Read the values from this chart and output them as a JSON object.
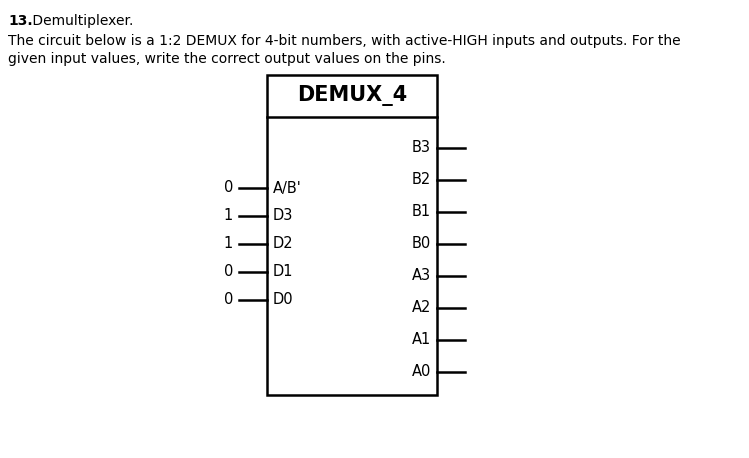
{
  "title_number": "13.",
  "title_text": " Demultiplexer.",
  "description_line1": "The circuit below is a 1:2 DEMUX for 4-bit numbers, with active-HIGH inputs and outputs. For the",
  "description_line2": "given input values, write the correct output values on the pins.",
  "chip_label": "DEMUX_4",
  "bg_color": "#ffffff",
  "text_color": "#000000",
  "box_color": "#000000",
  "chip_label_fontsize": 15,
  "pin_fontsize": 10.5,
  "desc_fontsize": 10,
  "title_fontsize": 10,
  "line_width": 1.5,
  "input_pins": [
    {
      "label": "A/B'",
      "value": "0"
    },
    {
      "label": "D3",
      "value": "1"
    },
    {
      "label": "D2",
      "value": "1"
    },
    {
      "label": "D1",
      "value": "0"
    },
    {
      "label": "D0",
      "value": "0"
    }
  ],
  "output_pins": [
    {
      "label": "B3"
    },
    {
      "label": "B2"
    },
    {
      "label": "B1"
    },
    {
      "label": "B0"
    },
    {
      "label": "A3"
    },
    {
      "label": "A2"
    },
    {
      "label": "A1"
    },
    {
      "label": "A0"
    }
  ]
}
